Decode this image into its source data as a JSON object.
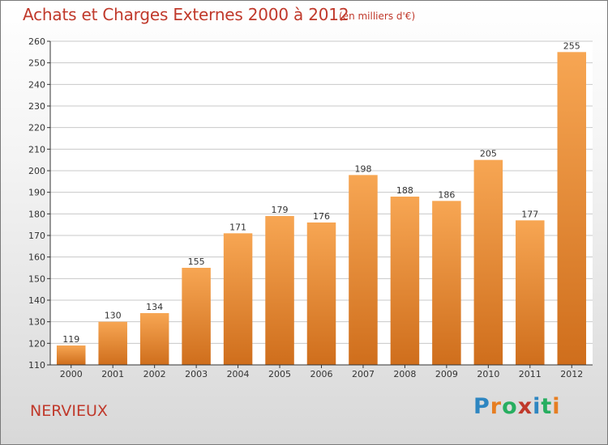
{
  "header": {
    "title": "Achats et Charges Externes 2000 à 2012",
    "subtitle": "(en milliers d'€)"
  },
  "footer": {
    "name": "NERVIEUX",
    "logo_letters": [
      {
        "ch": "P",
        "color": "#2e86c1"
      },
      {
        "ch": "r",
        "color": "#e67e22"
      },
      {
        "ch": "o",
        "color": "#27ae60"
      },
      {
        "ch": "x",
        "color": "#c0392b"
      },
      {
        "ch": "i",
        "color": "#2e86c1"
      },
      {
        "ch": "t",
        "color": "#27ae60"
      },
      {
        "ch": "i",
        "color": "#e67e22"
      }
    ]
  },
  "colors": {
    "bar_light": "#f7a653",
    "bar_dark": "#cf6e1c",
    "grid": "#c8c8c8",
    "accent": "#c0392b"
  },
  "chart_data": {
    "type": "bar",
    "title": "Achats et Charges Externes 2000 à 2012",
    "subtitle": "(en milliers d'€)",
    "categories": [
      "2000",
      "2001",
      "2002",
      "2003",
      "2004",
      "2005",
      "2006",
      "2007",
      "2008",
      "2009",
      "2010",
      "2011",
      "2012"
    ],
    "values": [
      119,
      130,
      134,
      155,
      171,
      179,
      176,
      198,
      188,
      186,
      205,
      177,
      255
    ],
    "ylim": [
      110,
      260
    ],
    "yticks": [
      110,
      120,
      130,
      140,
      150,
      160,
      170,
      180,
      190,
      200,
      210,
      220,
      230,
      240,
      250,
      260
    ],
    "grid": true,
    "xlabel": "",
    "ylabel": ""
  }
}
